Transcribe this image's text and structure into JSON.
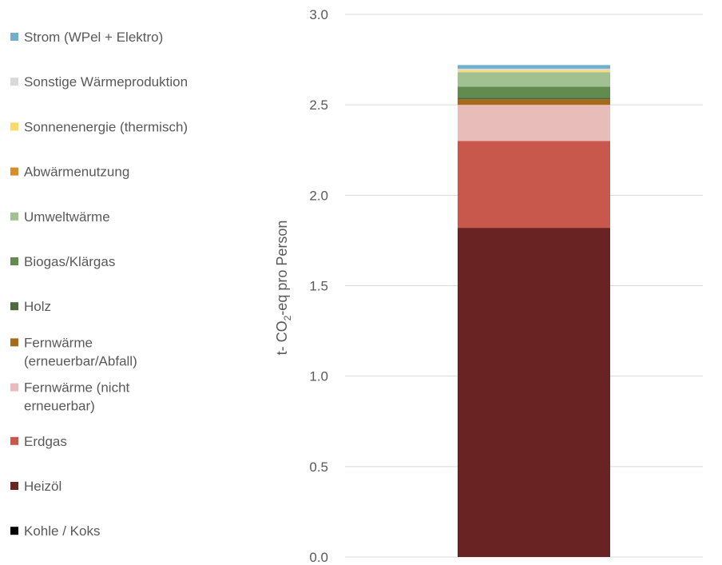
{
  "chart_data": {
    "type": "bar",
    "stacked": true,
    "title": "",
    "xlabel": "",
    "ylabel_parts": [
      "t- CO",
      "2",
      "-eq pro Person"
    ],
    "ylim": [
      0,
      3.0
    ],
    "yticks": [
      "0.0",
      "0.5",
      "1.0",
      "1.5",
      "2.0",
      "2.5",
      "3.0"
    ],
    "ytick_values": [
      0,
      0.5,
      1.0,
      1.5,
      2.0,
      2.5,
      3.0
    ],
    "grid": true,
    "legend_position": "left",
    "categories": [
      ""
    ],
    "series": [
      {
        "name": "Kohle / Koks",
        "values": [
          0.0
        ],
        "color": "#000000"
      },
      {
        "name": "Heizöl",
        "values": [
          1.82
        ],
        "color": "#692323"
      },
      {
        "name": "Erdgas",
        "values": [
          0.48
        ],
        "color": "#C8584C"
      },
      {
        "name": "Fernwärme (nicht erneuerbar)",
        "values": [
          0.2
        ],
        "color": "#E8BCB9"
      },
      {
        "name": "Fernwärme (erneuerbar/Abfall)",
        "values": [
          0.03
        ],
        "color": "#A66A1B"
      },
      {
        "name": "Holz",
        "values": [
          0.01
        ],
        "color": "#4D6A3C"
      },
      {
        "name": "Biogas/Klärgas",
        "values": [
          0.06
        ],
        "color": "#628B4F"
      },
      {
        "name": "Umweltwärme",
        "values": [
          0.08
        ],
        "color": "#A2C192"
      },
      {
        "name": "Abwärmenutzung",
        "values": [
          0.0
        ],
        "color": "#D98C2A"
      },
      {
        "name": "Sonnenenergie (thermisch)",
        "values": [
          0.01
        ],
        "color": "#FFD966"
      },
      {
        "name": "Sonstige Wärmeproduktion",
        "values": [
          0.01
        ],
        "color": "#D9D9D9"
      },
      {
        "name": "Strom (WPel + Elektro)",
        "values": [
          0.02
        ],
        "color": "#6FB0CC"
      }
    ]
  }
}
